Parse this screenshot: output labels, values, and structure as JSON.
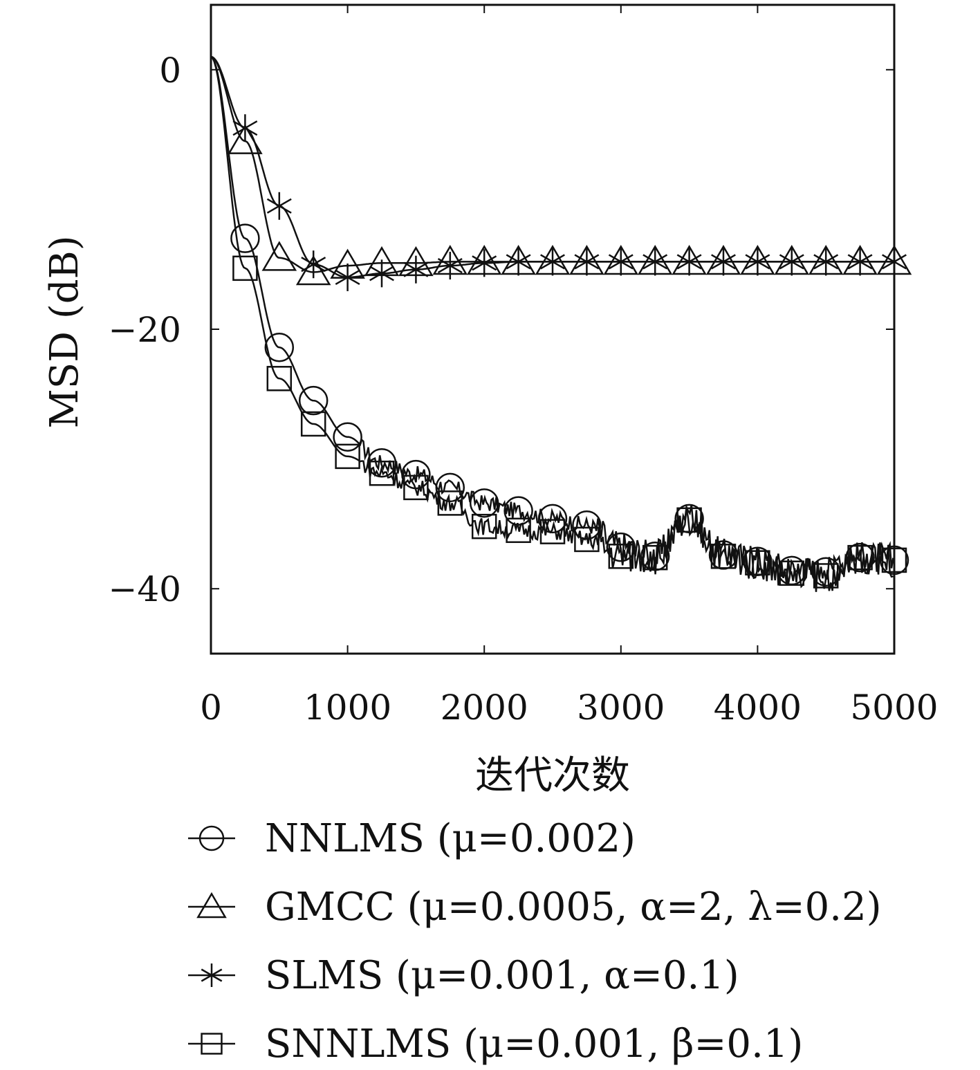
{
  "chart_data": {
    "type": "line",
    "xlabel": "迭代次数",
    "ylabel": "MSD (dB)",
    "xlim": [
      0,
      5000
    ],
    "ylim": [
      -45,
      5
    ],
    "xticks": [
      0,
      1000,
      2000,
      3000,
      4000,
      5000
    ],
    "xtick_labels": [
      "0",
      "1000",
      "2000",
      "3000",
      "4000",
      "5000"
    ],
    "yticks": [
      0,
      -20,
      -40
    ],
    "ytick_labels": [
      "0",
      "−20",
      "−40"
    ],
    "grid": false,
    "legend_position": "bottom",
    "line_color": "#111111",
    "series": [
      {
        "name": "NNLMS (μ=0.002)",
        "marker": "circle",
        "x": [
          0,
          250,
          500,
          750,
          1000,
          1250,
          1500,
          1750,
          2000,
          2250,
          2500,
          2750,
          3000,
          3250,
          3500,
          3750,
          4000,
          4250,
          4500,
          4750,
          5000
        ],
        "y": [
          1,
          -13,
          -21.4,
          -25.5,
          -28.3,
          -30.3,
          -31.2,
          -32.2,
          -33.4,
          -34,
          -34.6,
          -35.1,
          -36.8,
          -37.5,
          -34.6,
          -37.4,
          -37.9,
          -38.6,
          -38.7,
          -37.6,
          -37.8
        ]
      },
      {
        "name": "GMCC (μ=0.0005, α=2, λ=0.2)",
        "marker": "triangle",
        "x": [
          0,
          250,
          500,
          750,
          1000,
          1250,
          1500,
          1750,
          2000,
          2250,
          2500,
          2750,
          3000,
          3250,
          3500,
          3750,
          4000,
          4250,
          4500,
          4750,
          5000
        ],
        "y": [
          1,
          -5.5,
          -14.5,
          -15.6,
          -15.1,
          -14.9,
          -14.9,
          -14.8,
          -14.8,
          -14.8,
          -14.8,
          -14.8,
          -14.8,
          -14.8,
          -14.8,
          -14.8,
          -14.8,
          -14.8,
          -14.8,
          -14.8,
          -14.8
        ]
      },
      {
        "name": "SLMS (μ=0.001, α=0.1)",
        "marker": "asterisk",
        "x": [
          0,
          250,
          500,
          750,
          1000,
          1250,
          1500,
          1750,
          2000,
          2250,
          2500,
          2750,
          3000,
          3250,
          3500,
          3750,
          4000,
          4250,
          4500,
          4750,
          5000
        ],
        "y": [
          1,
          -4.5,
          -10.5,
          -15,
          -16,
          -15.7,
          -15.4,
          -15.1,
          -14.9,
          -14.8,
          -14.8,
          -14.8,
          -14.8,
          -14.8,
          -14.8,
          -14.8,
          -14.8,
          -14.8,
          -14.8,
          -14.8,
          -14.8
        ]
      },
      {
        "name": "SNNLMS (μ=0.001, β=0.1)",
        "marker": "square",
        "x": [
          0,
          250,
          500,
          750,
          1000,
          1250,
          1500,
          1750,
          2000,
          2250,
          2500,
          2750,
          3000,
          3250,
          3500,
          3750,
          4000,
          4250,
          4500,
          4750,
          5000
        ],
        "y": [
          1,
          -15.3,
          -23.8,
          -27.3,
          -29.8,
          -31.1,
          -32.2,
          -33.4,
          -35.2,
          -35.5,
          -35.6,
          -36.2,
          -37.5,
          -37.6,
          -34.7,
          -37.5,
          -38,
          -38.8,
          -39,
          -37.6,
          -37.8
        ]
      }
    ]
  }
}
